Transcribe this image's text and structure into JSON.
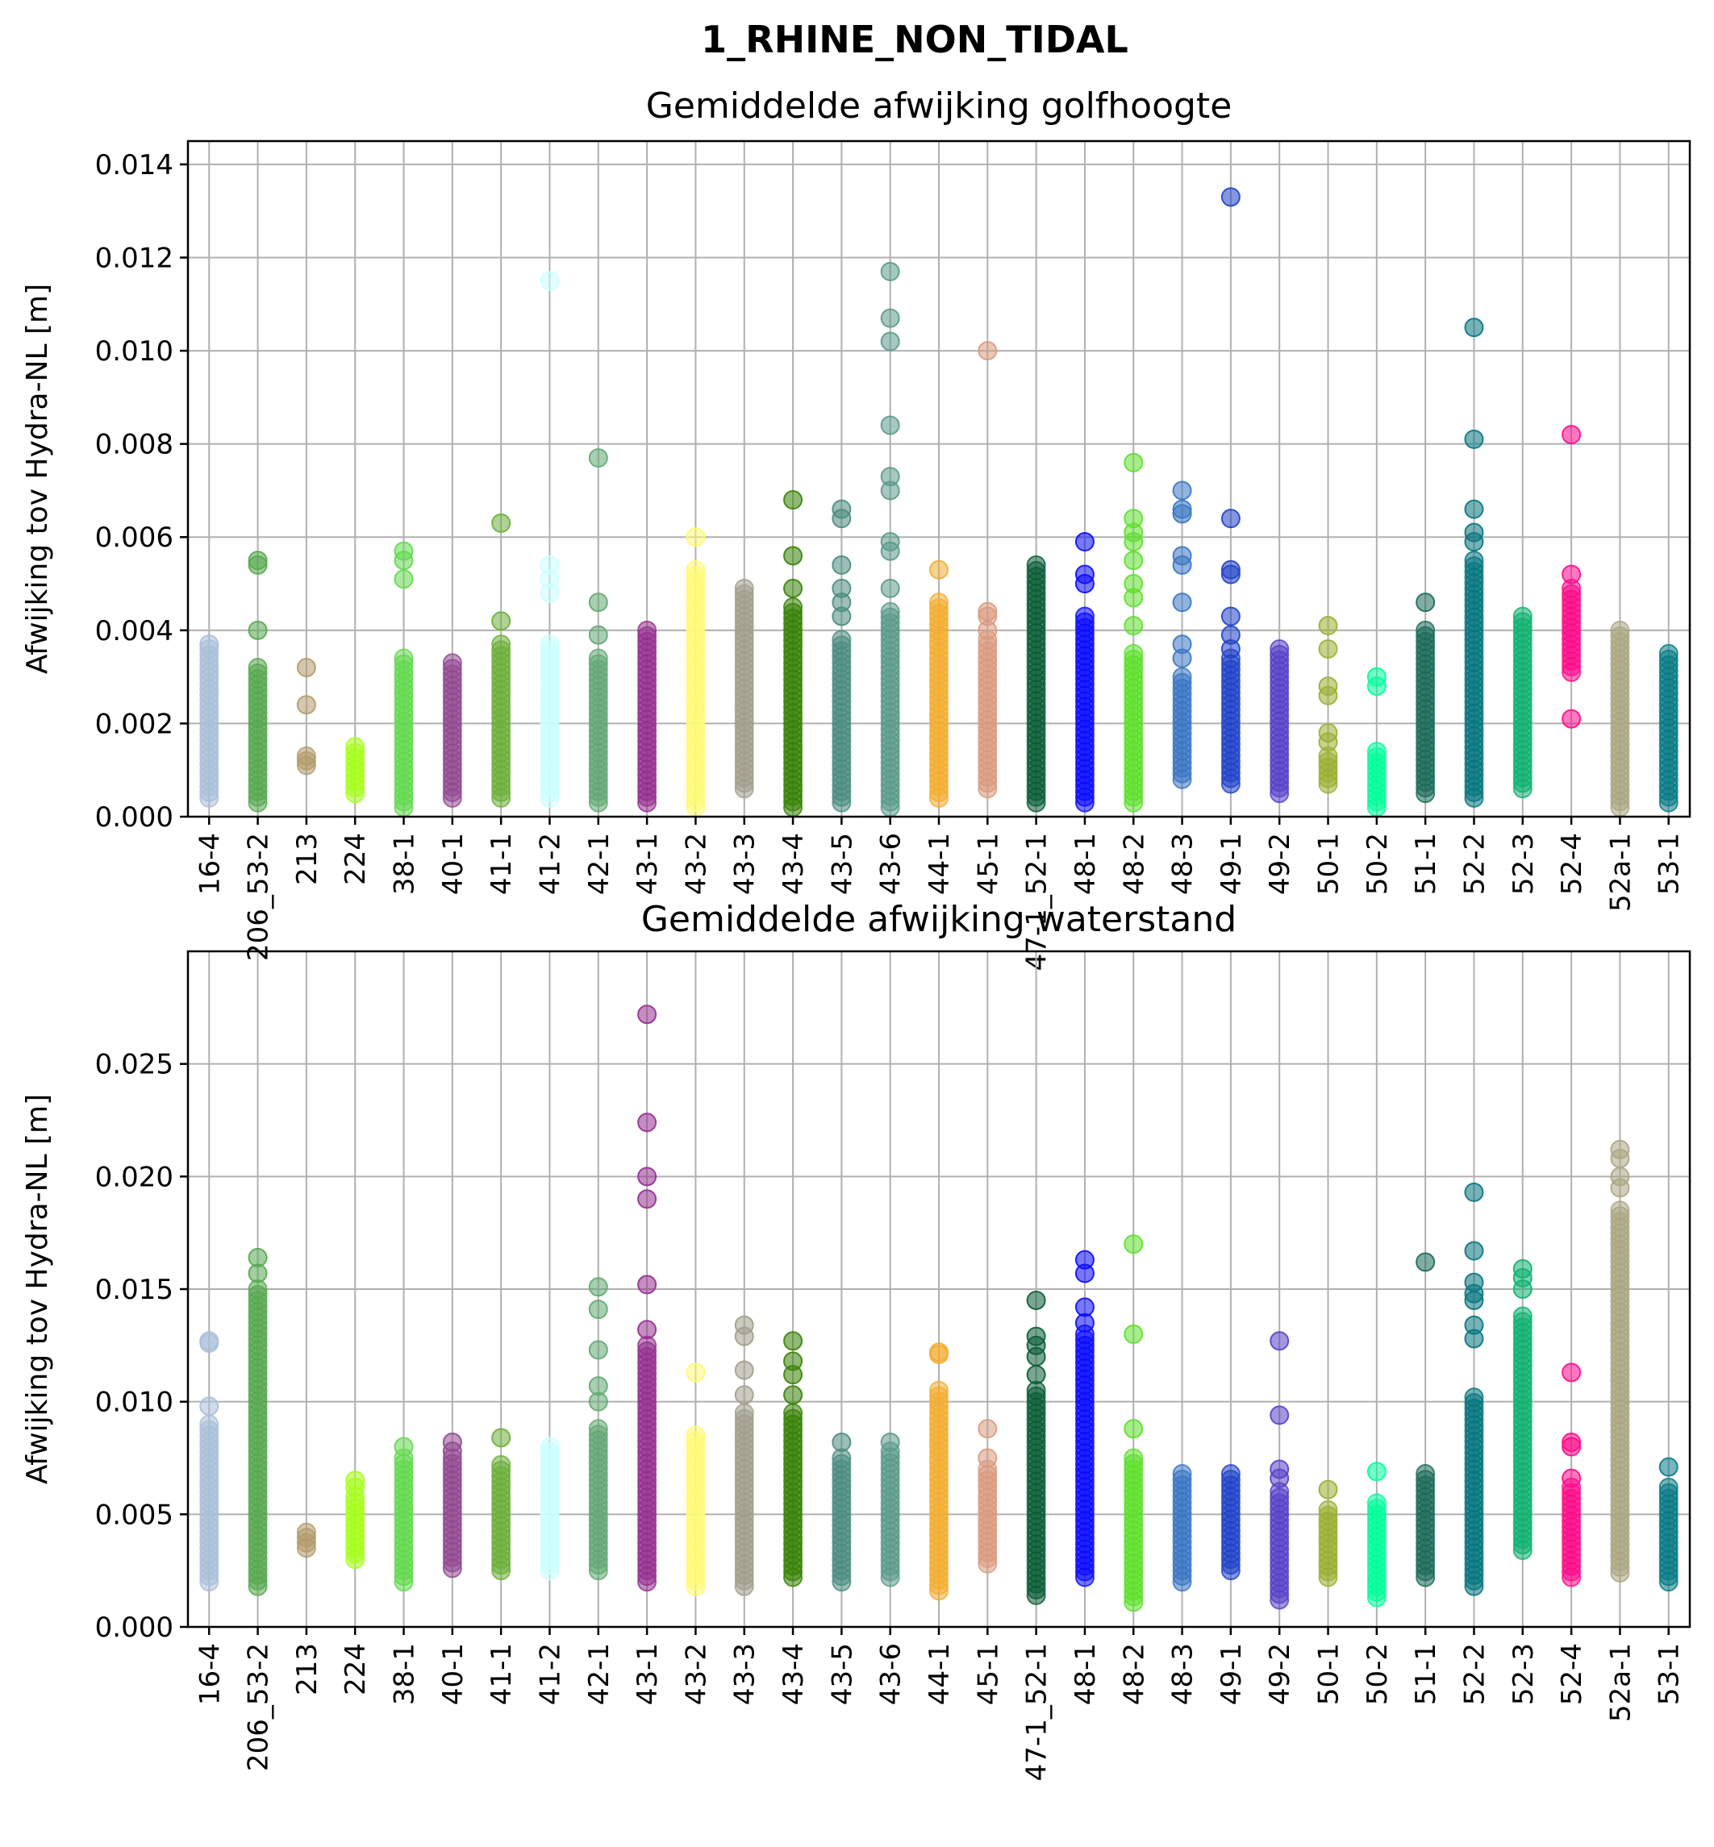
{
  "figure": {
    "suptitle": "1_RHINE_NON_TIDAL"
  },
  "chart_data": [
    {
      "type": "scatter",
      "title": "Gemiddelde afwijking golfhoogte",
      "ylabel": "Afwijking tov Hydra-NL [m]",
      "ylim": [
        0,
        0.0145
      ],
      "yticks": [
        "0.000",
        "0.002",
        "0.004",
        "0.006",
        "0.008",
        "0.010",
        "0.012",
        "0.014"
      ],
      "grid": true,
      "categories": [
        "16-4",
        "206_53-2",
        "213",
        "224",
        "38-1",
        "40-1",
        "41-1",
        "41-2",
        "42-1",
        "43-1",
        "43-2",
        "43-3",
        "43-4",
        "43-5",
        "43-6",
        "44-1",
        "45-1",
        "47-1_52-1",
        "48-1",
        "48-2",
        "48-3",
        "49-1",
        "49-2",
        "50-1",
        "50-2",
        "51-1",
        "52-2",
        "52-3",
        "52-4",
        "52a-1",
        "53-1"
      ],
      "colors": [
        "#a9bfd9",
        "#56a84f",
        "#b39a6b",
        "#a6ff1a",
        "#62d94f",
        "#914891",
        "#6caf3a",
        "#ccffff",
        "#62a873",
        "#952f8f",
        "#fffa75",
        "#a19e8c",
        "#378205",
        "#4a8c80",
        "#5b9a8a",
        "#f2ad31",
        "#d99a80",
        "#0a5c36",
        "#0a0aff",
        "#5de02b",
        "#3876c2",
        "#2142c8",
        "#5541c8",
        "#9aaf32",
        "#00ff9a",
        "#1a6a5a",
        "#057580",
        "#10b070",
        "#ff0a8a",
        "#aca584",
        "#087a85"
      ],
      "series": [
        {
          "category": "16-4",
          "min": 0.0004,
          "max": 0.0036,
          "outliers": [
            0.0037
          ]
        },
        {
          "category": "206_53-2",
          "min": 0.0003,
          "max": 0.0032,
          "outliers": [
            0.004,
            0.0054,
            0.0055
          ]
        },
        {
          "category": "213",
          "min": 0.0011,
          "max": 0.0013,
          "outliers": [
            0.0024,
            0.0032
          ]
        },
        {
          "category": "224",
          "min": 0.0005,
          "max": 0.0015,
          "outliers": []
        },
        {
          "category": "38-1",
          "min": 0.0002,
          "max": 0.0034,
          "outliers": [
            0.0051,
            0.0055,
            0.0057
          ]
        },
        {
          "category": "40-1",
          "min": 0.0004,
          "max": 0.0033,
          "outliers": []
        },
        {
          "category": "41-1",
          "min": 0.0004,
          "max": 0.0037,
          "outliers": [
            0.0042,
            0.0063
          ]
        },
        {
          "category": "41-2",
          "min": 0.0004,
          "max": 0.0037,
          "outliers": [
            0.0048,
            0.0051,
            0.0054,
            0.0115
          ]
        },
        {
          "category": "42-1",
          "min": 0.0003,
          "max": 0.0034,
          "outliers": [
            0.0039,
            0.0046,
            0.0077
          ]
        },
        {
          "category": "43-1",
          "min": 0.0003,
          "max": 0.004,
          "outliers": []
        },
        {
          "category": "43-2",
          "min": 0.0002,
          "max": 0.0053,
          "outliers": [
            0.006
          ]
        },
        {
          "category": "43-3",
          "min": 0.0006,
          "max": 0.0049,
          "outliers": []
        },
        {
          "category": "43-4",
          "min": 0.0002,
          "max": 0.0045,
          "outliers": [
            0.0049,
            0.0056,
            0.0068
          ]
        },
        {
          "category": "43-5",
          "min": 0.0003,
          "max": 0.0038,
          "outliers": [
            0.0043,
            0.0046,
            0.0049,
            0.0054,
            0.0064,
            0.0066
          ]
        },
        {
          "category": "43-6",
          "min": 0.0002,
          "max": 0.0044,
          "outliers": [
            0.0049,
            0.0057,
            0.0059,
            0.007,
            0.0073,
            0.0084,
            0.0102,
            0.0107,
            0.0117
          ]
        },
        {
          "category": "44-1",
          "min": 0.0004,
          "max": 0.0046,
          "outliers": [
            0.0053
          ]
        },
        {
          "category": "45-1",
          "min": 0.0006,
          "max": 0.0038,
          "outliers": [
            0.004,
            0.0043,
            0.0044,
            0.01
          ]
        },
        {
          "category": "47-1_52-1",
          "min": 0.0003,
          "max": 0.0054,
          "outliers": []
        },
        {
          "category": "48-1",
          "min": 0.0003,
          "max": 0.0043,
          "outliers": [
            0.005,
            0.0052,
            0.0059
          ]
        },
        {
          "category": "48-2",
          "min": 0.0003,
          "max": 0.0035,
          "outliers": [
            0.0041,
            0.0047,
            0.005,
            0.0055,
            0.0059,
            0.0061,
            0.0064,
            0.0076
          ]
        },
        {
          "category": "48-3",
          "min": 0.0008,
          "max": 0.003,
          "outliers": [
            0.0034,
            0.0037,
            0.0046,
            0.0054,
            0.0056,
            0.0065,
            0.0066,
            0.007
          ]
        },
        {
          "category": "49-1",
          "min": 0.0007,
          "max": 0.0034,
          "outliers": [
            0.0036,
            0.0039,
            0.0043,
            0.0052,
            0.0053,
            0.0064,
            0.0133
          ]
        },
        {
          "category": "49-2",
          "min": 0.0005,
          "max": 0.0036,
          "outliers": []
        },
        {
          "category": "50-1",
          "min": 0.0007,
          "max": 0.0013,
          "outliers": [
            0.0016,
            0.0018,
            0.0026,
            0.0028,
            0.0036,
            0.0041
          ]
        },
        {
          "category": "50-2",
          "min": 0.0002,
          "max": 0.0014,
          "outliers": [
            0.0028,
            0.003
          ]
        },
        {
          "category": "51-1",
          "min": 0.0005,
          "max": 0.004,
          "outliers": [
            0.0046
          ]
        },
        {
          "category": "52-2",
          "min": 0.0004,
          "max": 0.0055,
          "outliers": [
            0.0059,
            0.0061,
            0.0066,
            0.0081,
            0.0105
          ]
        },
        {
          "category": "52-3",
          "min": 0.0006,
          "max": 0.0043,
          "outliers": []
        },
        {
          "category": "52-4",
          "min": 0.0031,
          "max": 0.0049,
          "outliers": [
            0.0021,
            0.0052,
            0.0082
          ]
        },
        {
          "category": "52a-1",
          "min": 0.0002,
          "max": 0.004,
          "outliers": []
        },
        {
          "category": "53-1",
          "min": 0.0003,
          "max": 0.0035,
          "outliers": []
        }
      ]
    },
    {
      "type": "scatter",
      "title": "Gemiddelde afwijking waterstand",
      "ylabel": "Afwijking tov Hydra-NL [m]",
      "ylim": [
        0,
        0.03
      ],
      "yticks": [
        "0.000",
        "0.005",
        "0.010",
        "0.015",
        "0.020",
        "0.025"
      ],
      "grid": true,
      "categories": [
        "16-4",
        "206_53-2",
        "213",
        "224",
        "38-1",
        "40-1",
        "41-1",
        "41-2",
        "42-1",
        "43-1",
        "43-2",
        "43-3",
        "43-4",
        "43-5",
        "43-6",
        "44-1",
        "45-1",
        "47-1_52-1",
        "48-1",
        "48-2",
        "48-3",
        "49-1",
        "49-2",
        "50-1",
        "50-2",
        "51-1",
        "52-2",
        "52-3",
        "52-4",
        "52a-1",
        "53-1"
      ],
      "series": [
        {
          "category": "16-4",
          "min": 0.002,
          "max": 0.009,
          "outliers": [
            0.0098,
            0.0126,
            0.0127
          ]
        },
        {
          "category": "206_53-2",
          "min": 0.0018,
          "max": 0.015,
          "outliers": [
            0.0157,
            0.0164
          ]
        },
        {
          "category": "213",
          "min": 0.0035,
          "max": 0.0042,
          "outliers": []
        },
        {
          "category": "224",
          "min": 0.003,
          "max": 0.0058,
          "outliers": [
            0.0062,
            0.0065
          ]
        },
        {
          "category": "38-1",
          "min": 0.002,
          "max": 0.0075,
          "outliers": [
            0.008
          ]
        },
        {
          "category": "40-1",
          "min": 0.0026,
          "max": 0.0075,
          "outliers": [
            0.0078,
            0.0082
          ]
        },
        {
          "category": "41-1",
          "min": 0.0025,
          "max": 0.0072,
          "outliers": [
            0.0084
          ]
        },
        {
          "category": "41-2",
          "min": 0.0025,
          "max": 0.008,
          "outliers": []
        },
        {
          "category": "42-1",
          "min": 0.0025,
          "max": 0.0088,
          "outliers": [
            0.01,
            0.0107,
            0.0123,
            0.0141,
            0.0151
          ]
        },
        {
          "category": "43-1",
          "min": 0.002,
          "max": 0.0125,
          "outliers": [
            0.0132,
            0.0152,
            0.019,
            0.02,
            0.0224,
            0.0272
          ]
        },
        {
          "category": "43-2",
          "min": 0.0018,
          "max": 0.0085,
          "outliers": [
            0.0113
          ]
        },
        {
          "category": "43-3",
          "min": 0.0018,
          "max": 0.0095,
          "outliers": [
            0.0103,
            0.0114,
            0.0129,
            0.0134
          ]
        },
        {
          "category": "43-4",
          "min": 0.0022,
          "max": 0.0095,
          "outliers": [
            0.0103,
            0.0112,
            0.0118,
            0.0127
          ]
        },
        {
          "category": "43-5",
          "min": 0.002,
          "max": 0.0075,
          "outliers": [
            0.0082
          ]
        },
        {
          "category": "43-6",
          "min": 0.0022,
          "max": 0.0078,
          "outliers": [
            0.0082
          ]
        },
        {
          "category": "44-1",
          "min": 0.0016,
          "max": 0.0105,
          "outliers": [
            0.0121,
            0.0122
          ]
        },
        {
          "category": "45-1",
          "min": 0.0028,
          "max": 0.007,
          "outliers": [
            0.0075,
            0.0088
          ]
        },
        {
          "category": "47-1_52-1",
          "min": 0.0014,
          "max": 0.0105,
          "outliers": [
            0.0112,
            0.012,
            0.0125,
            0.0129,
            0.0145
          ]
        },
        {
          "category": "48-1",
          "min": 0.0022,
          "max": 0.013,
          "outliers": [
            0.0135,
            0.0142,
            0.0157,
            0.0163
          ]
        },
        {
          "category": "48-2",
          "min": 0.0011,
          "max": 0.0075,
          "outliers": [
            0.0088,
            0.013,
            0.017
          ]
        },
        {
          "category": "48-3",
          "min": 0.002,
          "max": 0.0068,
          "outliers": []
        },
        {
          "category": "49-1",
          "min": 0.0025,
          "max": 0.0068,
          "outliers": []
        },
        {
          "category": "49-2",
          "min": 0.0012,
          "max": 0.006,
          "outliers": [
            0.0066,
            0.007,
            0.0094,
            0.0127
          ]
        },
        {
          "category": "50-1",
          "min": 0.0022,
          "max": 0.0052,
          "outliers": [
            0.0061
          ]
        },
        {
          "category": "50-2",
          "min": 0.0013,
          "max": 0.0055,
          "outliers": [
            0.0069
          ]
        },
        {
          "category": "51-1",
          "min": 0.0022,
          "max": 0.0068,
          "outliers": [
            0.0162
          ]
        },
        {
          "category": "52-2",
          "min": 0.0018,
          "max": 0.0102,
          "outliers": [
            0.0128,
            0.0134,
            0.0145,
            0.0148,
            0.0153,
            0.0167,
            0.0193
          ]
        },
        {
          "category": "52-3",
          "min": 0.0034,
          "max": 0.0138,
          "outliers": [
            0.015,
            0.0155,
            0.0159
          ]
        },
        {
          "category": "52-4",
          "min": 0.0022,
          "max": 0.0062,
          "outliers": [
            0.0066,
            0.008,
            0.0082,
            0.0113
          ]
        },
        {
          "category": "52a-1",
          "min": 0.0024,
          "max": 0.0185,
          "outliers": [
            0.0195,
            0.02,
            0.0208,
            0.0212
          ]
        },
        {
          "category": "53-1",
          "min": 0.002,
          "max": 0.0062,
          "outliers": [
            0.0071
          ]
        }
      ]
    }
  ]
}
